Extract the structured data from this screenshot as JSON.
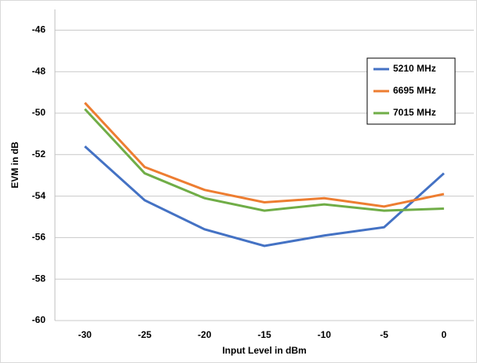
{
  "chart_data": {
    "type": "line",
    "x_label": "Input Level in dBm",
    "y_label": "EVM in dB",
    "x": [
      -30,
      -25,
      -20,
      -15,
      -10,
      -5,
      0
    ],
    "series": [
      {
        "name": "5210 MHz",
        "color": "#4472c4",
        "values": [
          -51.6,
          -54.2,
          -55.6,
          -56.4,
          -55.9,
          -55.5,
          -52.9
        ]
      },
      {
        "name": "6695 MHz",
        "color": "#ed7d31",
        "values": [
          -49.5,
          -52.6,
          -53.7,
          -54.3,
          -54.1,
          -54.5,
          -53.9
        ]
      },
      {
        "name": "7015 MHz",
        "color": "#70ad47",
        "values": [
          -49.8,
          -52.9,
          -54.1,
          -54.7,
          -54.4,
          -54.7,
          -54.6
        ]
      }
    ],
    "xlim": [
      -32.5,
      2.5
    ],
    "xticks": [
      -30,
      -25,
      -20,
      -15,
      -10,
      -5,
      0
    ],
    "ylim": [
      -60,
      -45
    ],
    "yticks": [
      -60,
      -58,
      -56,
      -54,
      -52,
      -50,
      -48,
      -46
    ],
    "grid": true,
    "legend": "upper-right"
  }
}
